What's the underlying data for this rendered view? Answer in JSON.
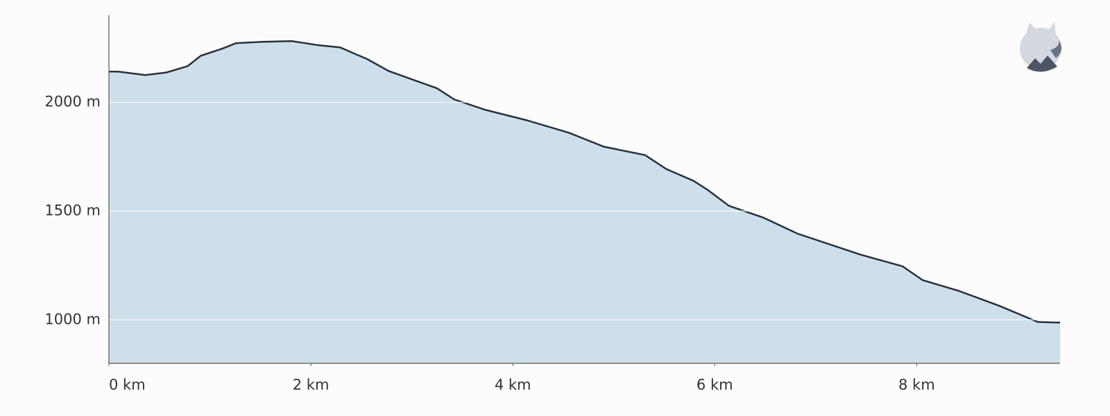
{
  "chart_data": {
    "type": "area",
    "x": [
      0,
      0.09,
      0.36,
      0.57,
      0.78,
      0.91,
      1.12,
      1.26,
      1.53,
      1.81,
      2.08,
      2.29,
      2.56,
      2.77,
      3.04,
      3.25,
      3.42,
      3.73,
      4.14,
      4.56,
      4.9,
      5.31,
      5.52,
      5.79,
      5.93,
      6.14,
      6.48,
      6.82,
      7.17,
      7.44,
      7.86,
      8.06,
      8.41,
      8.82,
      9.2,
      9.42
    ],
    "series": [
      {
        "color": "#2b2f36",
        "fill": "#cddfea",
        "values": [
          2141,
          2141,
          2125,
          2137,
          2166,
          2214,
          2246,
          2272,
          2278,
          2281,
          2262,
          2252,
          2198,
          2144,
          2099,
          2064,
          2013,
          1965,
          1917,
          1859,
          1796,
          1757,
          1693,
          1639,
          1597,
          1524,
          1470,
          1396,
          1342,
          1300,
          1246,
          1182,
          1134,
          1064,
          990,
          987
        ]
      }
    ],
    "xlim": [
      0,
      9.42
    ],
    "ylim": [
      800,
      2400
    ],
    "xticks": [
      {
        "value": 0,
        "label": "0 km"
      },
      {
        "value": 2,
        "label": "2 km"
      },
      {
        "value": 4,
        "label": "4 km"
      },
      {
        "value": 6,
        "label": "6 km"
      },
      {
        "value": 8,
        "label": "8 km"
      }
    ],
    "yticks": [
      {
        "value": 1000,
        "label": "1000 m"
      },
      {
        "value": 1500,
        "label": "1500 m"
      },
      {
        "value": 2000,
        "label": "2000 m"
      }
    ],
    "grid": true
  }
}
